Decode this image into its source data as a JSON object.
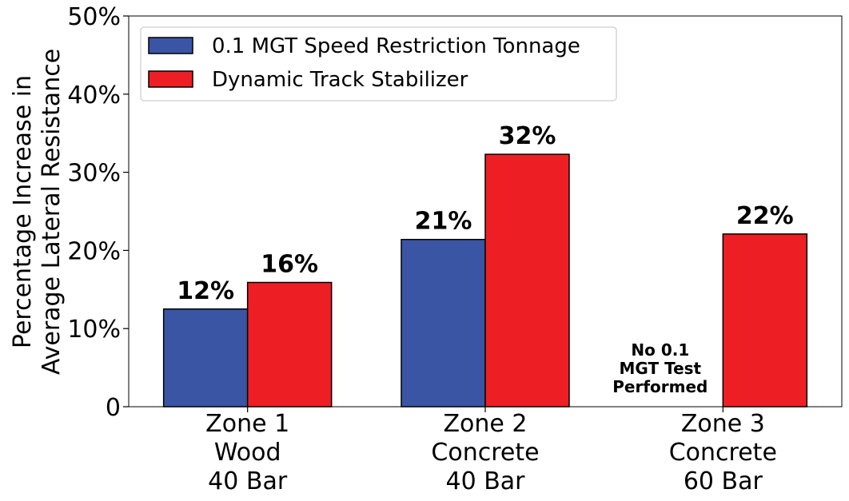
{
  "chart_data": {
    "type": "bar",
    "categories": [
      [
        "Zone 1",
        "Wood",
        "40 Bar"
      ],
      [
        "Zone 2",
        "Concrete",
        "40 Bar"
      ],
      [
        "Zone 3",
        "Concrete",
        "60 Bar"
      ]
    ],
    "series": [
      {
        "name": "0.1 MGT Speed Restriction Tonnage",
        "color": "#3a55a4",
        "values": [
          12.5,
          21.4,
          null
        ],
        "labels": [
          "12%",
          "21%",
          null
        ]
      },
      {
        "name": "Dynamic Track Stabilizer",
        "color": "#ee1f24",
        "values": [
          15.9,
          32.3,
          22.1
        ],
        "labels": [
          "16%",
          "32%",
          "22%"
        ]
      }
    ],
    "ylabel": [
      "Percentage Increase in",
      "Average Lateral Resistance"
    ],
    "xlabel": "",
    "ylim": [
      0,
      50
    ],
    "yticks": [
      0,
      10,
      20,
      30,
      40,
      50
    ],
    "ytick_labels": [
      "0",
      "10%",
      "20%",
      "30%",
      "40%",
      "50%"
    ],
    "annotations": [
      {
        "category_index": 2,
        "series_index": 0,
        "lines": [
          "No 0.1",
          "MGT Test",
          "Performed"
        ]
      }
    ],
    "legend_position": "upper-left",
    "grid": false
  }
}
